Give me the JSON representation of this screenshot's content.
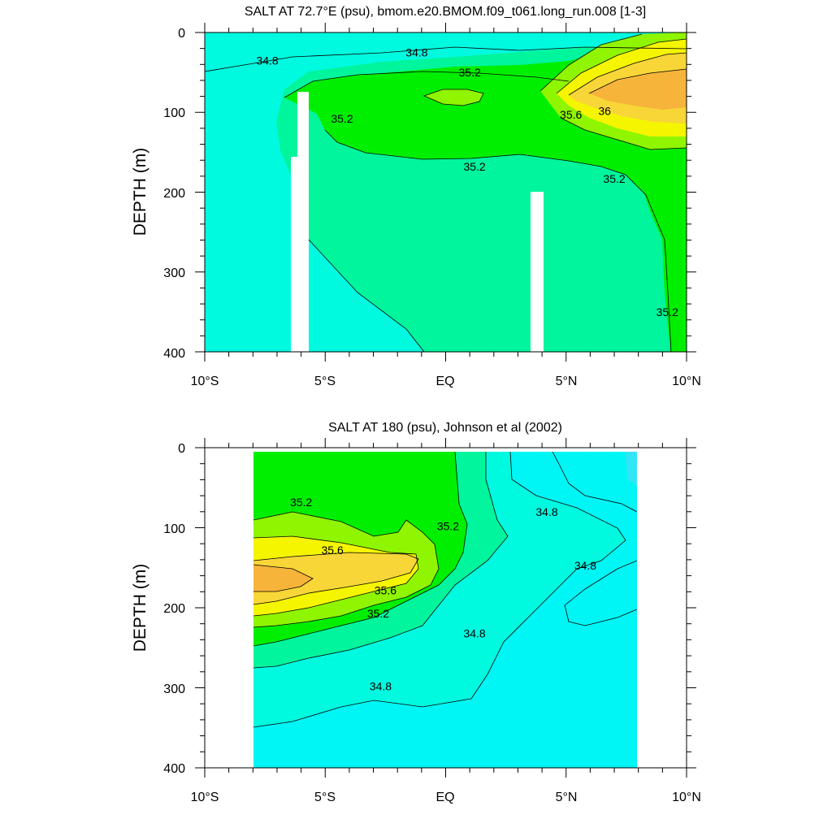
{
  "chart_data": [
    {
      "type": "contour",
      "title": "SALT AT  72.7°E (psu), bmom.e20.BMOM.f09_t061.long_run.008 [1-3]",
      "xlabel": "",
      "ylabel": "DEPTH (m)",
      "x_ticks": [
        -10,
        -5,
        0,
        5,
        10
      ],
      "x_tick_labels": [
        "10°S",
        "5°S",
        "EQ",
        "5°N",
        "10°N"
      ],
      "y_ticks": [
        0,
        100,
        200,
        300,
        400
      ],
      "y_tick_labels": [
        "0",
        "100",
        "200",
        "300",
        "400"
      ],
      "xlim": [
        -10,
        10
      ],
      "ylim": [
        400,
        0
      ],
      "contour_labels": [
        {
          "text": "34.8",
          "x": -7.4,
          "y": 35
        },
        {
          "text": "34.8",
          "x": -1.2,
          "y": 25
        },
        {
          "text": "35.2",
          "x": 1.0,
          "y": 50
        },
        {
          "text": "35.2",
          "x": -4.3,
          "y": 108
        },
        {
          "text": "36",
          "x": 6.6,
          "y": 98
        },
        {
          "text": "35.6",
          "x": 5.2,
          "y": 103
        },
        {
          "text": "35.2",
          "x": 1.2,
          "y": 168
        },
        {
          "text": "35.2",
          "x": 7.0,
          "y": 183
        },
        {
          "text": "35.2",
          "x": 9.2,
          "y": 350
        }
      ]
    },
    {
      "type": "contour",
      "title": "SALT AT 180 (psu), Johnson et al (2002)",
      "xlabel": "",
      "ylabel": "DEPTH (m)",
      "x_ticks": [
        -10,
        -5,
        0,
        5,
        10
      ],
      "x_tick_labels": [
        "10°S",
        "5°S",
        "EQ",
        "5°N",
        "10°N"
      ],
      "y_ticks": [
        0,
        100,
        200,
        300,
        400
      ],
      "y_tick_labels": [
        "0",
        "100",
        "200",
        "300",
        "400"
      ],
      "xlim": [
        -10,
        10
      ],
      "ylim": [
        400,
        0
      ],
      "contour_labels": [
        {
          "text": "35.2",
          "x": -6.0,
          "y": 68
        },
        {
          "text": "35.2",
          "x": 0.1,
          "y": 98
        },
        {
          "text": "34.8",
          "x": 4.2,
          "y": 80
        },
        {
          "text": "35.6",
          "x": -4.7,
          "y": 128
        },
        {
          "text": "34.8",
          "x": 5.8,
          "y": 147
        },
        {
          "text": "35.6",
          "x": -2.5,
          "y": 178
        },
        {
          "text": "35.2",
          "x": -2.8,
          "y": 207
        },
        {
          "text": "34.8",
          "x": 1.2,
          "y": 232
        },
        {
          "text": "34.8",
          "x": -2.7,
          "y": 298
        }
      ]
    }
  ],
  "colors": {
    "c34_6": "#00f5f5",
    "c34_8": "#00fae0",
    "c35_0": "#00f59c",
    "c35_2": "#00ef00",
    "c35_4": "#8ff500",
    "c35_6": "#f5f500",
    "c35_8": "#f8d638",
    "c36_0": "#f6b43a"
  }
}
